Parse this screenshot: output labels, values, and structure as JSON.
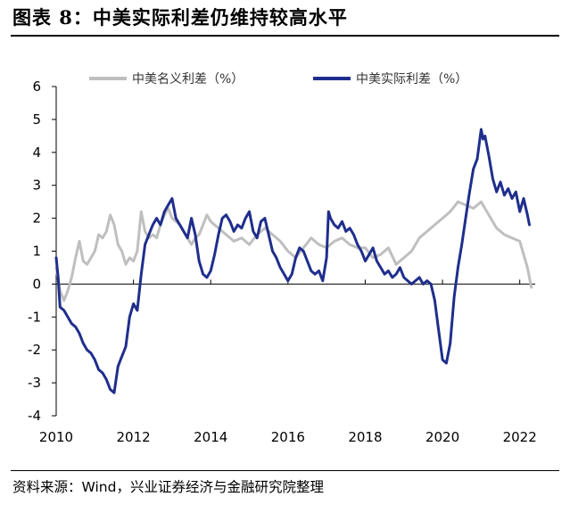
{
  "header": {
    "title": "图表 8：中美实际利差仍维持较高水平"
  },
  "footer": {
    "source": "资料来源：Wind，兴业证券经济与金融研究院整理"
  },
  "colors": {
    "nominal": "#BFBFBF",
    "real": "#1F2E8C",
    "axis": "#000000"
  },
  "chart_data": {
    "type": "line",
    "title": "中美实际利差仍维持较高水平",
    "xlabel": "",
    "ylabel": "",
    "xlim": [
      2010.0,
      2022.4
    ],
    "ylim": [
      -4,
      6
    ],
    "xticks": [
      2010,
      2012,
      2014,
      2016,
      2018,
      2020,
      2022
    ],
    "xtick_labels": [
      "2010",
      "2012",
      "2014",
      "2016",
      "2018",
      "2020",
      "2022"
    ],
    "yticks": [
      -4,
      -3,
      -2,
      -1,
      0,
      1,
      2,
      3,
      4,
      5,
      6
    ],
    "ytick_labels": [
      "-4",
      "-3",
      "-2",
      "-1",
      "0",
      "1",
      "2",
      "3",
      "4",
      "5",
      "6"
    ],
    "legend_position": "top",
    "grid": false,
    "series": [
      {
        "name": "中美名义利差（%）",
        "x": [
          2010.0,
          2010.1,
          2010.2,
          2010.3,
          2010.4,
          2010.5,
          2010.6,
          2010.7,
          2010.8,
          2010.9,
          2011.0,
          2011.1,
          2011.2,
          2011.3,
          2011.4,
          2011.5,
          2011.6,
          2011.7,
          2011.8,
          2011.9,
          2012.0,
          2012.1,
          2012.2,
          2012.3,
          2012.4,
          2012.5,
          2012.6,
          2012.7,
          2012.8,
          2012.9,
          2013.0,
          2013.2,
          2013.4,
          2013.5,
          2013.6,
          2013.7,
          2013.8,
          2013.9,
          2014.0,
          2014.2,
          2014.4,
          2014.6,
          2014.8,
          2015.0,
          2015.2,
          2015.4,
          2015.6,
          2015.8,
          2016.0,
          2016.2,
          2016.4,
          2016.6,
          2016.8,
          2017.0,
          2017.2,
          2017.4,
          2017.6,
          2017.8,
          2018.0,
          2018.2,
          2018.4,
          2018.6,
          2018.8,
          2019.0,
          2019.2,
          2019.4,
          2019.6,
          2019.8,
          2020.0,
          2020.2,
          2020.4,
          2020.6,
          2020.8,
          2021.0,
          2021.2,
          2021.4,
          2021.6,
          2021.8,
          2022.0,
          2022.1,
          2022.2,
          2022.3
        ],
        "values": [
          0.5,
          -0.2,
          -0.5,
          -0.2,
          0.2,
          0.8,
          1.3,
          0.7,
          0.6,
          0.8,
          1.0,
          1.5,
          1.4,
          1.6,
          2.1,
          1.8,
          1.2,
          1.0,
          0.6,
          0.8,
          0.7,
          1.0,
          2.2,
          1.6,
          1.4,
          1.5,
          1.4,
          1.8,
          2.1,
          2.3,
          2.0,
          1.8,
          1.4,
          1.2,
          1.4,
          1.5,
          1.8,
          2.1,
          1.9,
          1.7,
          1.5,
          1.3,
          1.4,
          1.2,
          1.5,
          1.7,
          1.5,
          1.3,
          1.0,
          0.8,
          1.1,
          1.4,
          1.2,
          1.1,
          1.3,
          1.4,
          1.2,
          1.1,
          1.1,
          0.8,
          0.9,
          1.1,
          0.6,
          0.8,
          1.0,
          1.4,
          1.6,
          1.8,
          2.0,
          2.2,
          2.5,
          2.4,
          2.3,
          2.5,
          2.1,
          1.7,
          1.5,
          1.4,
          1.3,
          0.9,
          0.5,
          -0.1
        ]
      },
      {
        "name": "中美实际利差（%）",
        "x": [
          2010.0,
          2010.05,
          2010.1,
          2010.2,
          2010.3,
          2010.4,
          2010.5,
          2010.6,
          2010.7,
          2010.8,
          2010.9,
          2011.0,
          2011.1,
          2011.2,
          2011.3,
          2011.4,
          2011.5,
          2011.55,
          2011.6,
          2011.7,
          2011.8,
          2011.9,
          2012.0,
          2012.1,
          2012.2,
          2012.3,
          2012.4,
          2012.5,
          2012.6,
          2012.7,
          2012.8,
          2012.9,
          2013.0,
          2013.1,
          2013.2,
          2013.3,
          2013.4,
          2013.5,
          2013.6,
          2013.7,
          2013.8,
          2013.9,
          2014.0,
          2014.1,
          2014.2,
          2014.3,
          2014.4,
          2014.5,
          2014.6,
          2014.7,
          2014.8,
          2014.9,
          2015.0,
          2015.1,
          2015.2,
          2015.3,
          2015.4,
          2015.5,
          2015.6,
          2015.7,
          2015.8,
          2015.9,
          2016.0,
          2016.1,
          2016.2,
          2016.3,
          2016.4,
          2016.5,
          2016.6,
          2016.7,
          2016.8,
          2016.9,
          2017.0,
          2017.05,
          2017.1,
          2017.2,
          2017.3,
          2017.4,
          2017.5,
          2017.6,
          2017.7,
          2017.8,
          2017.9,
          2018.0,
          2018.1,
          2018.2,
          2018.3,
          2018.4,
          2018.5,
          2018.6,
          2018.7,
          2018.8,
          2018.9,
          2019.0,
          2019.1,
          2019.2,
          2019.3,
          2019.4,
          2019.5,
          2019.6,
          2019.7,
          2019.8,
          2019.9,
          2020.0,
          2020.1,
          2020.2,
          2020.3,
          2020.4,
          2020.5,
          2020.6,
          2020.7,
          2020.8,
          2020.9,
          2021.0,
          2021.05,
          2021.1,
          2021.2,
          2021.3,
          2021.4,
          2021.5,
          2021.6,
          2021.7,
          2021.8,
          2021.9,
          2022.0,
          2022.1,
          2022.2,
          2022.25
        ],
        "values": [
          0.8,
          0.2,
          -0.7,
          -0.8,
          -1.0,
          -1.2,
          -1.3,
          -1.5,
          -1.8,
          -2.0,
          -2.1,
          -2.3,
          -2.6,
          -2.7,
          -2.9,
          -3.2,
          -3.3,
          -2.9,
          -2.5,
          -2.2,
          -1.9,
          -1.0,
          -0.6,
          -0.8,
          0.3,
          1.2,
          1.5,
          1.8,
          2.0,
          1.8,
          2.2,
          2.4,
          2.6,
          2.0,
          1.8,
          1.6,
          1.4,
          2.0,
          1.5,
          0.7,
          0.3,
          0.2,
          0.4,
          0.9,
          1.5,
          2.0,
          2.1,
          1.9,
          1.6,
          1.8,
          1.7,
          2.0,
          2.2,
          1.6,
          1.4,
          1.9,
          2.0,
          1.5,
          1.0,
          0.8,
          0.5,
          0.3,
          0.1,
          0.3,
          0.8,
          1.1,
          1.0,
          0.7,
          0.4,
          0.3,
          0.4,
          0.1,
          0.8,
          2.2,
          2.0,
          1.8,
          1.7,
          1.9,
          1.6,
          1.7,
          1.5,
          1.2,
          1.0,
          0.7,
          0.9,
          1.1,
          0.7,
          0.5,
          0.3,
          0.4,
          0.2,
          0.3,
          0.5,
          0.2,
          0.1,
          0.0,
          0.1,
          0.2,
          0.0,
          0.1,
          0.0,
          -0.5,
          -1.4,
          -2.3,
          -2.4,
          -1.8,
          -0.4,
          0.5,
          1.2,
          2.0,
          2.8,
          3.5,
          3.8,
          4.7,
          4.4,
          4.5,
          3.9,
          3.2,
          2.8,
          3.1,
          2.7,
          2.9,
          2.6,
          2.8,
          2.2,
          2.6,
          2.1,
          1.8
        ]
      }
    ]
  }
}
